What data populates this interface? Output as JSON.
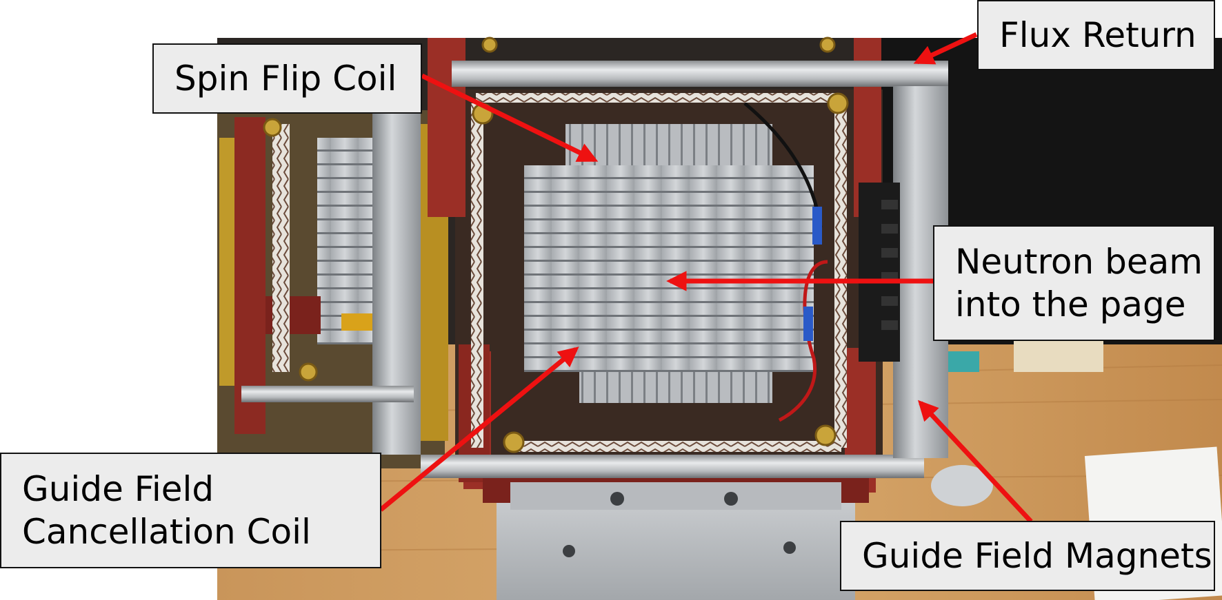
{
  "figure": {
    "labels": {
      "flux_return": "Flux Return",
      "spin_flip_coil": "Spin Flip Coil",
      "neutron_beam_line1": "Neutron beam",
      "neutron_beam_line2": "into the page",
      "guide_field_cancellation_line1": "Guide Field",
      "guide_field_cancellation_line2": "Cancellation Coil",
      "guide_field_magnets": "Guide Field Magnets"
    },
    "colors": {
      "arrow": "#ee1111",
      "label_box": "#ececec",
      "background": "#ffffff"
    }
  }
}
